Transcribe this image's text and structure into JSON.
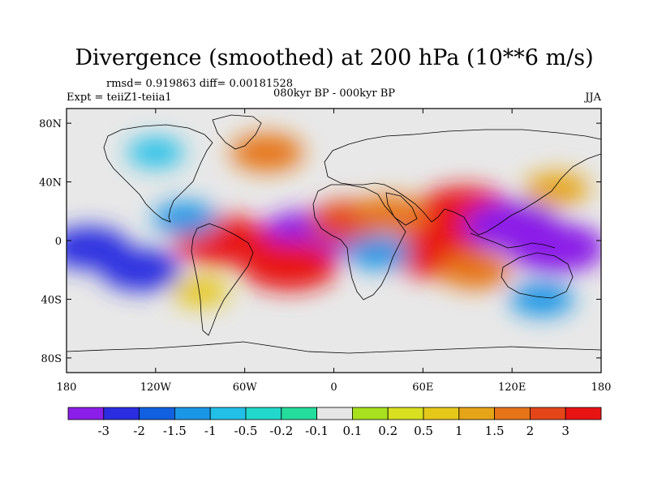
{
  "title": "Divergence (smoothed) at 200 hPa (10**6 m/s)",
  "stats": "rmsd= 0.919863 diff= 0.00181528",
  "experiment": "Expt = teiiZ1-teiia1",
  "period": "080kyr BP - 000kyr BP",
  "season": "JJA",
  "map": {
    "projection": "cylindrical equidistant",
    "lon_range": [
      -180,
      180
    ],
    "lat_range": [
      -90,
      90
    ],
    "background_color": "#e8e8e8",
    "coastline_color": "#000000",
    "lon_ticks": [
      {
        "value": -180,
        "label": "180"
      },
      {
        "value": -120,
        "label": "120W"
      },
      {
        "value": -60,
        "label": "60W"
      },
      {
        "value": 0,
        "label": "0"
      },
      {
        "value": 60,
        "label": "60E"
      },
      {
        "value": 120,
        "label": "120E"
      },
      {
        "value": 180,
        "label": "180"
      }
    ],
    "lat_ticks": [
      {
        "value": 80,
        "label": "80N"
      },
      {
        "value": 40,
        "label": "40N"
      },
      {
        "value": 0,
        "label": "0"
      },
      {
        "value": -40,
        "label": "40S"
      },
      {
        "value": -80,
        "label": "80S"
      }
    ],
    "anomalies": [
      {
        "lon": -18,
        "lat": 3,
        "value": -3
      },
      {
        "lon": -75,
        "lat": 0,
        "value": 3
      },
      {
        "lon": -30,
        "lat": -17,
        "value": 3
      },
      {
        "lon": 10,
        "lat": 13,
        "value": 2
      },
      {
        "lon": 68,
        "lat": -8,
        "value": 3
      },
      {
        "lon": 88,
        "lat": 20,
        "value": 3
      },
      {
        "lon": 120,
        "lat": 10,
        "value": -3
      },
      {
        "lon": 150,
        "lat": -5,
        "value": -3
      },
      {
        "lon": -165,
        "lat": -5,
        "value": -2
      },
      {
        "lon": -130,
        "lat": -20,
        "value": -2
      },
      {
        "lon": -100,
        "lat": 15,
        "value": -1
      },
      {
        "lon": 38,
        "lat": 18,
        "value": 1.5
      },
      {
        "lon": 95,
        "lat": -20,
        "value": 1.5
      },
      {
        "lon": 30,
        "lat": -8,
        "value": -1
      },
      {
        "lon": -90,
        "lat": -35,
        "value": 0.5
      },
      {
        "lon": -45,
        "lat": 60,
        "value": 1.5
      },
      {
        "lon": 150,
        "lat": 35,
        "value": 1
      },
      {
        "lon": 140,
        "lat": -40,
        "value": -1
      },
      {
        "lon": -120,
        "lat": 60,
        "value": -0.5
      }
    ]
  },
  "colorbar": {
    "colors": [
      "#8b1ee8",
      "#2a2de0",
      "#1060e0",
      "#1a96e6",
      "#22c0e8",
      "#22d8cc",
      "#24dc9c",
      "#e6e6e6",
      "#a8e01e",
      "#d8e020",
      "#e6c81a",
      "#e6a418",
      "#e67418",
      "#e4461a",
      "#e81414"
    ],
    "labels": [
      "-3",
      "-2",
      "-1.5",
      "-1",
      "-0.5",
      "-0.2",
      "-0.1",
      "0.1",
      "0.2",
      "0.5",
      "1",
      "1.5",
      "2",
      "3"
    ],
    "levels": [
      -3,
      -2,
      -1.5,
      -1,
      -0.5,
      -0.2,
      -0.1,
      0.1,
      0.2,
      0.5,
      1,
      1.5,
      2,
      3
    ]
  }
}
